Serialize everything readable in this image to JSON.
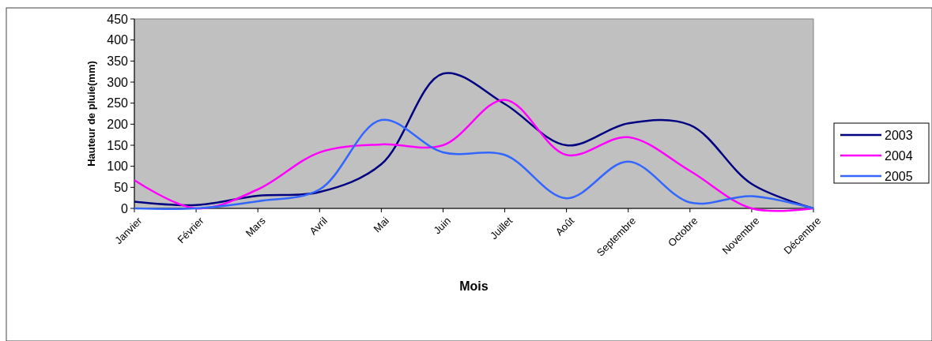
{
  "chart_data": {
    "type": "line",
    "xlabel": "Mois",
    "ylabel": "Hauteur de pluie(mm)",
    "categories": [
      "Janvier",
      "Février",
      "Mars",
      "Avril",
      "Mai",
      "Juin",
      "Juillet",
      "Août",
      "Septembre",
      "Octobre",
      "Novembre",
      "Décembre"
    ],
    "series": [
      {
        "name": "2003",
        "color": "#000080",
        "values": [
          16,
          8,
          30,
          39,
          105,
          320,
          248,
          150,
          202,
          198,
          58,
          0
        ]
      },
      {
        "name": "2004",
        "color": "#ff00ff",
        "values": [
          67,
          0,
          45,
          133,
          152,
          150,
          258,
          127,
          169,
          89,
          0,
          0
        ]
      },
      {
        "name": "2005",
        "color": "#3366ff",
        "values": [
          0,
          0,
          17,
          45,
          210,
          133,
          127,
          24,
          111,
          14,
          29,
          0
        ]
      }
    ],
    "ylim": [
      0,
      450
    ],
    "yticks": [
      0,
      50,
      100,
      150,
      200,
      250,
      300,
      350,
      400,
      450
    ],
    "grid": false,
    "legend": "right",
    "marker": "none",
    "line_style": "solid"
  }
}
